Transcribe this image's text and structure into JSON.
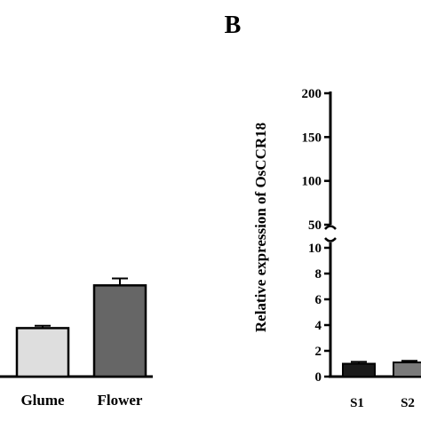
{
  "panel_label": "B",
  "chart_data": [
    {
      "type": "bar",
      "panel": "A (cropped)",
      "categories": [
        "Glume",
        "Flower"
      ],
      "values": [
        4.2,
        7.9
      ],
      "errors": [
        0.2,
        0.6
      ],
      "colors": [
        "#dedede",
        "#666666"
      ],
      "title": "",
      "xlabel": "",
      "ylabel": "",
      "grid": false
    },
    {
      "type": "bar",
      "panel": "B",
      "categories": [
        "S1",
        "S2"
      ],
      "values": [
        1.0,
        1.1
      ],
      "errors": [
        0.15,
        0.12
      ],
      "colors": [
        "#1a1a1a",
        "#7a7a7a"
      ],
      "title": "",
      "xlabel": "",
      "ylabel": "Relative expression of OsCCR18",
      "y_broken_axis": true,
      "y_lower_range": [
        0,
        10
      ],
      "y_upper_range": [
        50,
        200
      ],
      "y_ticks_lower": [
        "0",
        "2",
        "4",
        "6",
        "8",
        "10"
      ],
      "y_ticks_upper": [
        "50",
        "100",
        "150",
        "200"
      ],
      "grid": false
    }
  ]
}
